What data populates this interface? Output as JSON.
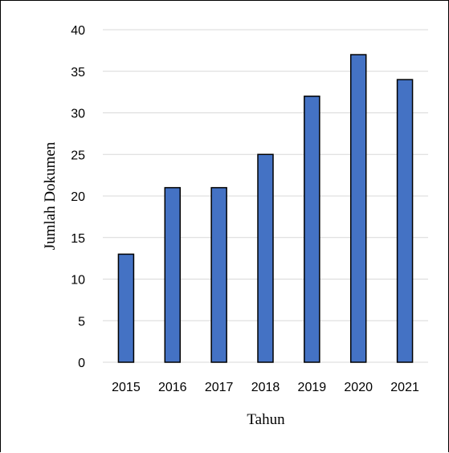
{
  "chart_data": {
    "type": "bar",
    "title": "",
    "xlabel": "Tahun",
    "ylabel": "Jumlah Dokumen",
    "categories": [
      "2015",
      "2016",
      "2017",
      "2018",
      "2019",
      "2020",
      "2021"
    ],
    "values": [
      13,
      21,
      21,
      25,
      32,
      37,
      34
    ],
    "ylim": [
      0,
      40
    ],
    "yticks": [
      "0",
      "5",
      "10",
      "15",
      "20",
      "25",
      "30",
      "35",
      "40"
    ],
    "grid": true,
    "legend": "none",
    "colors": {
      "bar_fill": "#4472C4",
      "bar_stroke": "#000000",
      "grid": "#D9D9D9"
    }
  }
}
